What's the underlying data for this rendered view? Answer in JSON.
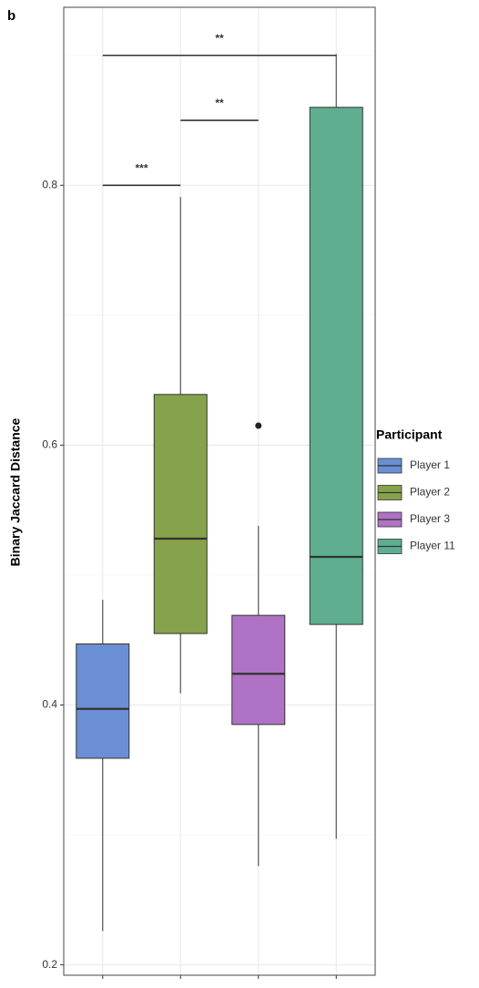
{
  "chart_data": {
    "type": "box",
    "panel_label": "b",
    "y_label": "Binary Jaccard Distance",
    "legend_title": "Participant",
    "legend_position": "right",
    "ylim": [
      0.192,
      0.937
    ],
    "yticks": [
      0.2,
      0.4,
      0.6,
      0.8
    ],
    "minor_yticks": [
      0.3,
      0.5,
      0.7,
      0.9
    ],
    "grid": true,
    "series": [
      {
        "name": "Player 1",
        "color": "#6b8fd4",
        "low": 0.226,
        "q1": 0.359,
        "median": 0.397,
        "q3": 0.447,
        "high": 0.481,
        "outliers": []
      },
      {
        "name": "Player 2",
        "color": "#86a24a",
        "low": 0.409,
        "q1": 0.455,
        "median": 0.528,
        "q3": 0.639,
        "high": 0.791,
        "outliers": []
      },
      {
        "name": "Player 3",
        "color": "#b072c4",
        "low": 0.276,
        "q1": 0.385,
        "median": 0.424,
        "q3": 0.469,
        "high": 0.538,
        "outliers": [
          0.615
        ]
      },
      {
        "name": "Player 11",
        "color": "#5fae90",
        "low": 0.297,
        "q1": 0.462,
        "median": 0.514,
        "q3": 0.86,
        "high": 0.901,
        "outliers": []
      }
    ],
    "annotations": [
      {
        "text": "***",
        "y": 0.8,
        "from": 0,
        "to": 1
      },
      {
        "text": "**",
        "y": 0.85,
        "from": 1,
        "to": 2
      },
      {
        "text": "**",
        "y": 0.9,
        "from": 0,
        "to": 3
      }
    ]
  }
}
